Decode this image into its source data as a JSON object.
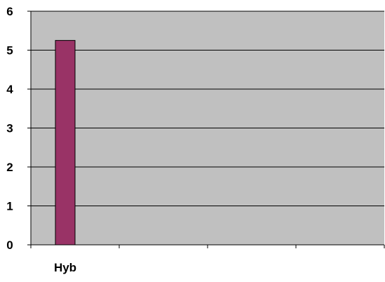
{
  "chart_data": {
    "type": "bar",
    "categories": [
      "Hyb",
      "",
      "",
      ""
    ],
    "values": [
      5.25,
      null,
      null,
      null
    ],
    "title": "",
    "xlabel": "",
    "ylabel": "",
    "ylim": [
      0,
      6
    ],
    "yticks": [
      0,
      1,
      2,
      3,
      4,
      5,
      6
    ],
    "grid": true,
    "legend": "none",
    "colors": {
      "bar": "#993366",
      "bar_border": "#000000",
      "plot_area": "#C0C0C0",
      "gridline": "#000000",
      "axis": "#000000"
    }
  }
}
